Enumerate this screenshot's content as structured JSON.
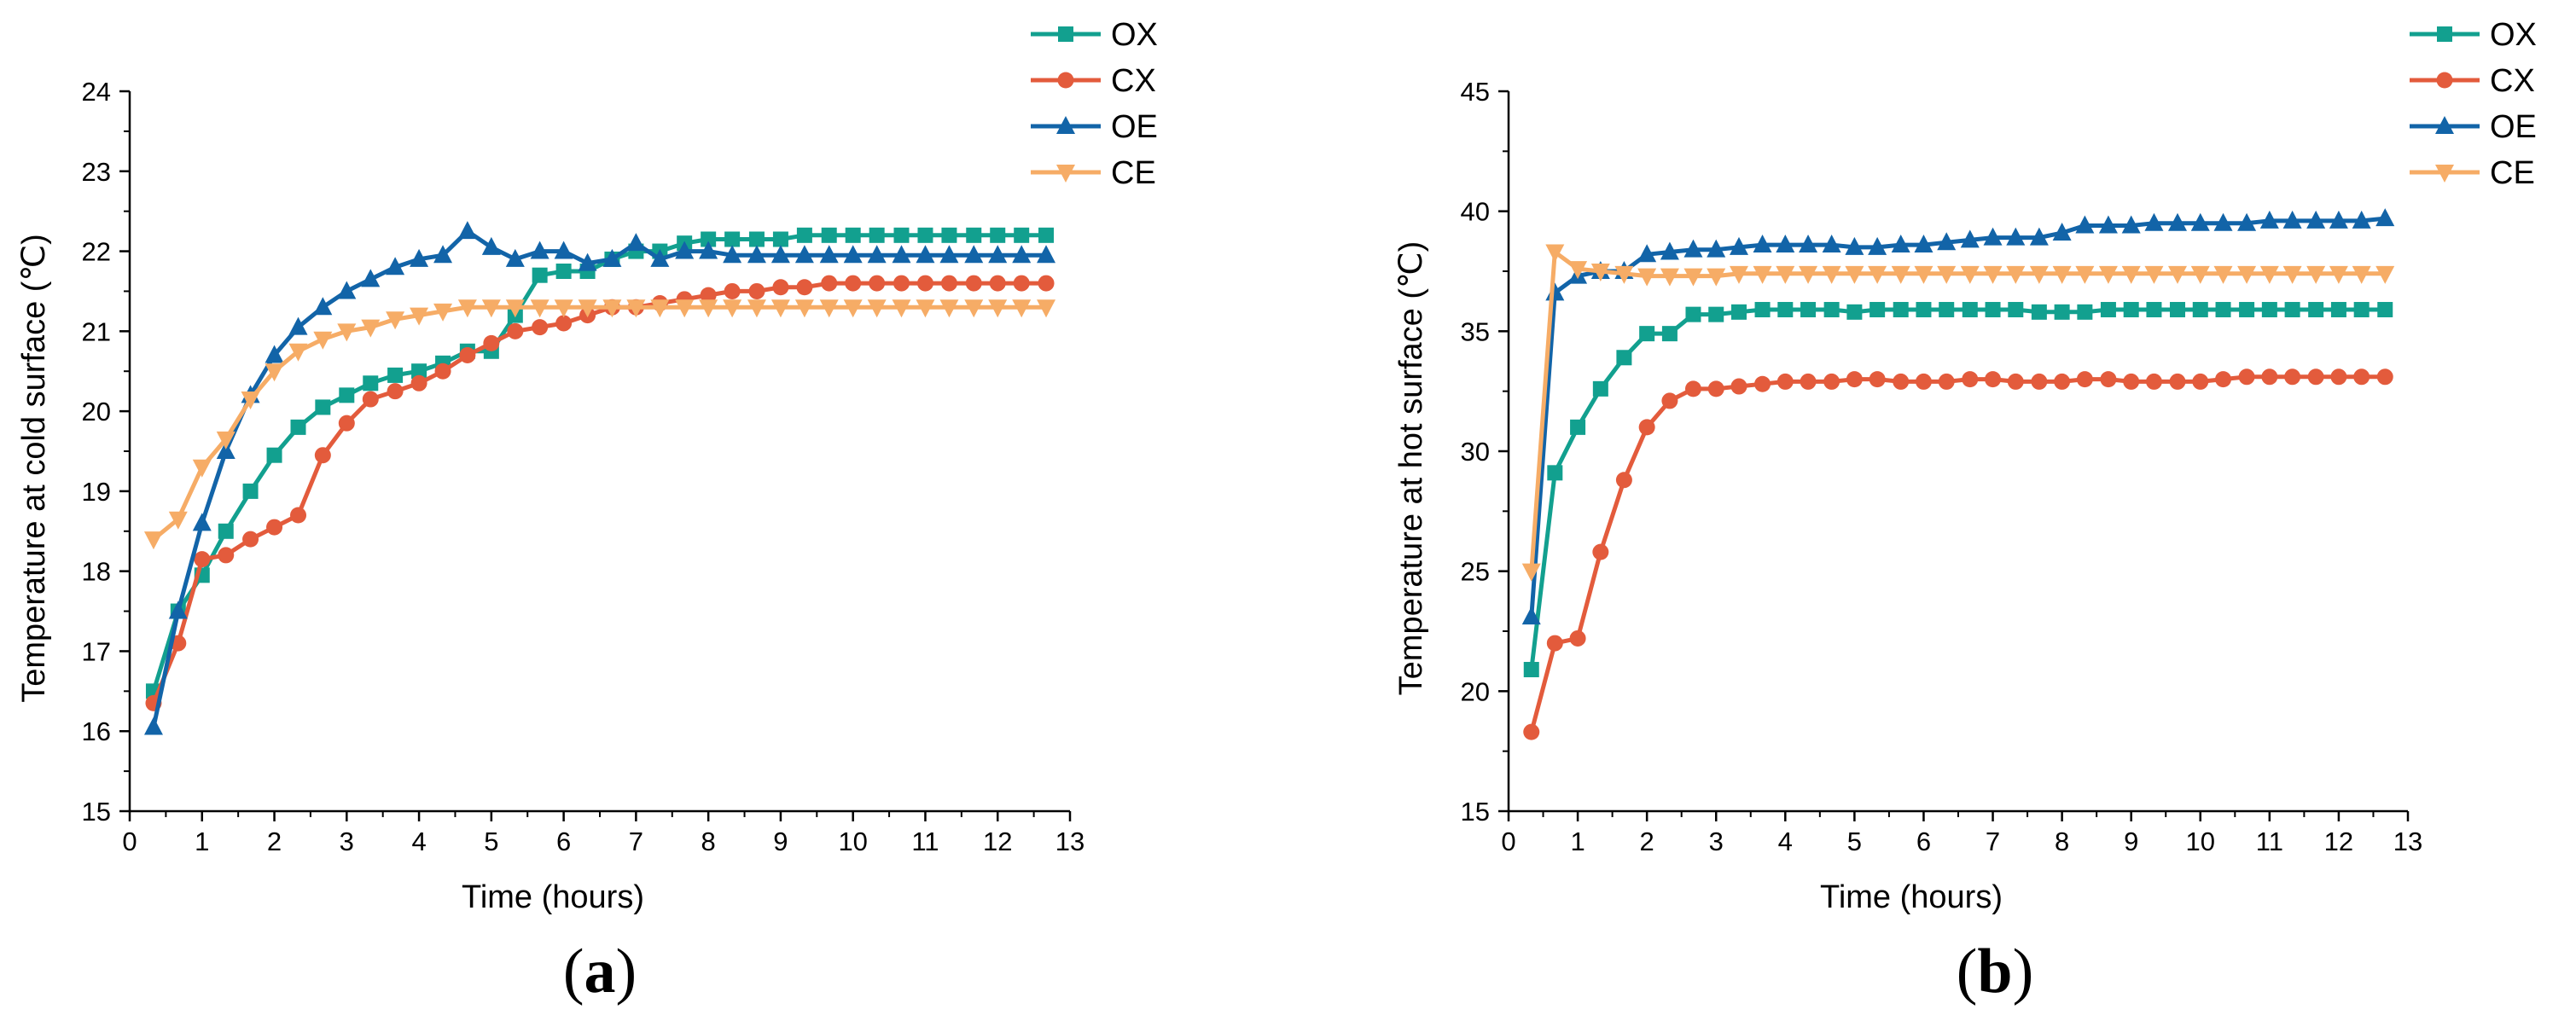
{
  "colors": {
    "OX": "#12a08f",
    "CX": "#e35b3c",
    "OE": "#1264a8",
    "CE": "#f6ac66"
  },
  "chart_data": [
    {
      "type": "line",
      "panel_label": "a",
      "xlabel": "Time (hours)",
      "ylabel": "Temperature at cold surface (℃)",
      "xlim": [
        0,
        13
      ],
      "ylim": [
        15,
        24
      ],
      "xticks": [
        0,
        1,
        2,
        3,
        4,
        5,
        6,
        7,
        8,
        9,
        10,
        11,
        12,
        13
      ],
      "yticks": [
        15,
        16,
        17,
        18,
        19,
        20,
        21,
        22,
        23,
        24
      ],
      "legend_position": "top-right",
      "x": [
        0.33,
        0.67,
        1.0,
        1.33,
        1.67,
        2.0,
        2.33,
        2.67,
        3.0,
        3.33,
        3.67,
        4.0,
        4.33,
        4.67,
        5.0,
        5.33,
        5.67,
        6.0,
        6.33,
        6.67,
        7.0,
        7.33,
        7.67,
        8.0,
        8.33,
        8.67,
        9.0,
        9.33,
        9.67,
        10.0,
        10.33,
        10.67,
        11.0,
        11.33,
        11.67,
        12.0,
        12.33,
        12.67
      ],
      "series": [
        {
          "name": "OX",
          "marker": "square",
          "values": [
            16.5,
            17.5,
            17.95,
            18.5,
            19.0,
            19.45,
            19.8,
            20.05,
            20.2,
            20.35,
            20.45,
            20.5,
            20.6,
            20.75,
            20.75,
            21.2,
            21.7,
            21.75,
            21.75,
            21.9,
            22.0,
            22.0,
            22.1,
            22.15,
            22.15,
            22.15,
            22.15,
            22.2,
            22.2,
            22.2,
            22.2,
            22.2,
            22.2,
            22.2,
            22.2,
            22.2,
            22.2,
            22.2
          ]
        },
        {
          "name": "CX",
          "marker": "circle",
          "values": [
            16.35,
            17.1,
            18.15,
            18.2,
            18.4,
            18.55,
            18.7,
            19.45,
            19.85,
            20.15,
            20.25,
            20.35,
            20.5,
            20.7,
            20.85,
            21.0,
            21.05,
            21.1,
            21.2,
            21.3,
            21.3,
            21.35,
            21.4,
            21.45,
            21.5,
            21.5,
            21.55,
            21.55,
            21.6,
            21.6,
            21.6,
            21.6,
            21.6,
            21.6,
            21.6,
            21.6,
            21.6,
            21.6
          ]
        },
        {
          "name": "OE",
          "marker": "triangle-up",
          "values": [
            16.05,
            17.5,
            18.6,
            19.5,
            20.2,
            20.7,
            21.05,
            21.3,
            21.5,
            21.65,
            21.8,
            21.9,
            21.95,
            22.25,
            22.05,
            21.9,
            22.0,
            22.0,
            21.85,
            21.9,
            22.1,
            21.9,
            22.0,
            22.0,
            21.95,
            21.95,
            21.95,
            21.95,
            21.95,
            21.95,
            21.95,
            21.95,
            21.95,
            21.95,
            21.95,
            21.95,
            21.95,
            21.95
          ]
        },
        {
          "name": "CE",
          "marker": "triangle-down",
          "values": [
            18.4,
            18.65,
            19.3,
            19.65,
            20.15,
            20.5,
            20.75,
            20.9,
            21.0,
            21.05,
            21.15,
            21.2,
            21.25,
            21.3,
            21.3,
            21.3,
            21.3,
            21.3,
            21.3,
            21.3,
            21.3,
            21.3,
            21.3,
            21.3,
            21.3,
            21.3,
            21.3,
            21.3,
            21.3,
            21.3,
            21.3,
            21.3,
            21.3,
            21.3,
            21.3,
            21.3,
            21.3,
            21.3
          ]
        }
      ]
    },
    {
      "type": "line",
      "panel_label": "b",
      "xlabel": "Time (hours)",
      "ylabel": "Temperature at hot surface (℃)",
      "xlim": [
        0,
        13
      ],
      "ylim": [
        15,
        45
      ],
      "xticks": [
        0,
        1,
        2,
        3,
        4,
        5,
        6,
        7,
        8,
        9,
        10,
        11,
        12,
        13
      ],
      "yticks": [
        15,
        20,
        25,
        30,
        35,
        40,
        45
      ],
      "legend_position": "top-right",
      "x": [
        0.33,
        0.67,
        1.0,
        1.33,
        1.67,
        2.0,
        2.33,
        2.67,
        3.0,
        3.33,
        3.67,
        4.0,
        4.33,
        4.67,
        5.0,
        5.33,
        5.67,
        6.0,
        6.33,
        6.67,
        7.0,
        7.33,
        7.67,
        8.0,
        8.33,
        8.67,
        9.0,
        9.33,
        9.67,
        10.0,
        10.33,
        10.67,
        11.0,
        11.33,
        11.67,
        12.0,
        12.33,
        12.67
      ],
      "series": [
        {
          "name": "OX",
          "marker": "square",
          "values": [
            20.9,
            29.1,
            31.0,
            32.6,
            33.9,
            34.9,
            34.9,
            35.7,
            35.7,
            35.8,
            35.9,
            35.9,
            35.9,
            35.9,
            35.8,
            35.9,
            35.9,
            35.9,
            35.9,
            35.9,
            35.9,
            35.9,
            35.8,
            35.8,
            35.8,
            35.9,
            35.9,
            35.9,
            35.9,
            35.9,
            35.9,
            35.9,
            35.9,
            35.9,
            35.9,
            35.9,
            35.9,
            35.9
          ]
        },
        {
          "name": "CX",
          "marker": "circle",
          "values": [
            18.3,
            22.0,
            22.2,
            25.8,
            28.8,
            31.0,
            32.1,
            32.6,
            32.6,
            32.7,
            32.8,
            32.9,
            32.9,
            32.9,
            33.0,
            33.0,
            32.9,
            32.9,
            32.9,
            33.0,
            33.0,
            32.9,
            32.9,
            32.9,
            33.0,
            33.0,
            32.9,
            32.9,
            32.9,
            32.9,
            33.0,
            33.1,
            33.1,
            33.1,
            33.1,
            33.1,
            33.1,
            33.1
          ]
        },
        {
          "name": "OE",
          "marker": "triangle-up",
          "values": [
            23.1,
            36.6,
            37.3,
            37.5,
            37.5,
            38.2,
            38.3,
            38.4,
            38.4,
            38.5,
            38.6,
            38.6,
            38.6,
            38.6,
            38.5,
            38.5,
            38.6,
            38.6,
            38.7,
            38.8,
            38.9,
            38.9,
            38.9,
            39.1,
            39.4,
            39.4,
            39.4,
            39.5,
            39.5,
            39.5,
            39.5,
            39.5,
            39.6,
            39.6,
            39.6,
            39.6,
            39.6,
            39.7
          ]
        },
        {
          "name": "CE",
          "marker": "triangle-down",
          "values": [
            25.0,
            38.3,
            37.6,
            37.5,
            37.4,
            37.3,
            37.3,
            37.3,
            37.3,
            37.4,
            37.4,
            37.4,
            37.4,
            37.4,
            37.4,
            37.4,
            37.4,
            37.4,
            37.4,
            37.4,
            37.4,
            37.4,
            37.4,
            37.4,
            37.4,
            37.4,
            37.4,
            37.4,
            37.4,
            37.4,
            37.4,
            37.4,
            37.4,
            37.4,
            37.4,
            37.4,
            37.4,
            37.4
          ]
        }
      ]
    }
  ]
}
